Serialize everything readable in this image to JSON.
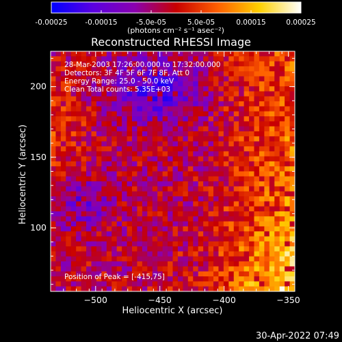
{
  "colorbar": {
    "tick_labels": [
      "-0.00025",
      "-0.00015",
      "-5.0e-05",
      "5.0e-05",
      "0.00015",
      "0.00025"
    ],
    "tick_values": [
      -0.00025,
      -0.00015,
      -5e-05,
      5e-05,
      0.00015,
      0.00025
    ],
    "range": [
      -0.00025,
      0.00025
    ],
    "unit_label": "(photons cm⁻² s⁻¹ asec⁻²)",
    "colors": [
      "#0000ff",
      "#5a00e0",
      "#8a00b0",
      "#c80000",
      "#ff6000",
      "#ffd000",
      "#ffffff"
    ]
  },
  "chart_data": {
    "type": "heatmap",
    "title": "Reconstructed RHESSI Image",
    "xlabel": "Heliocentric X (arcsec)",
    "ylabel": "Heliocentric Y (arcsec)",
    "xlim": [
      -535,
      -345
    ],
    "ylim": [
      55,
      225
    ],
    "x_ticks": [
      -500,
      -450,
      -400,
      -350
    ],
    "x_tick_labels": [
      "−500",
      "−450",
      "−400",
      "−350"
    ],
    "y_ticks": [
      100,
      150,
      200
    ],
    "y_tick_labels": [
      "100",
      "150",
      "200"
    ],
    "annotations": [
      "28-Mar-2003 17:26:00.000 to 17:32:00.000",
      "Detectors: 3F 4F 5F 6F 7F 8F, Att 0",
      "Energy Range: 25.0 - 50.0 keV",
      "Clean    Total counts: 5.35E+03"
    ],
    "peak_label": "Position of Peak = [-415,75]",
    "peak_position": [
      -415,
      75
    ],
    "color_min": -0.00025,
    "color_max": 0.00025
  },
  "footer": {
    "timestamp": "30-Apr-2022 07:49"
  }
}
